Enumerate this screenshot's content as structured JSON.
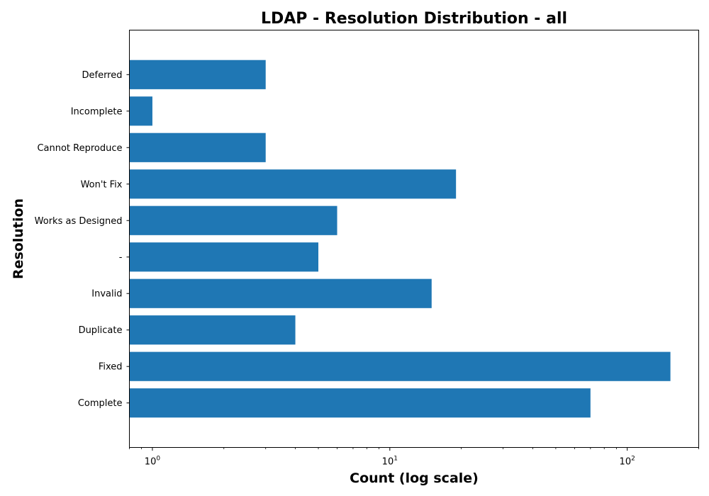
{
  "chart_data": {
    "type": "bar",
    "orientation": "horizontal",
    "title": "LDAP - Resolution Distribution - all",
    "xlabel": "Count (log scale)",
    "ylabel": "Resolution",
    "xscale": "log",
    "xlim": [
      0.8,
      200
    ],
    "x_ticks": [
      {
        "value": 1,
        "base": "10",
        "exp": "0"
      },
      {
        "value": 10,
        "base": "10",
        "exp": "1"
      },
      {
        "value": 100,
        "base": "10",
        "exp": "2"
      }
    ],
    "categories": [
      "Complete",
      "Fixed",
      "Duplicate",
      "Invalid",
      "-",
      "Works as Designed",
      "Won't Fix",
      "Cannot Reproduce",
      "Incomplete",
      "Deferred"
    ],
    "values": [
      70,
      152,
      4,
      15,
      5,
      6,
      19,
      3,
      1,
      3
    ],
    "color": "#1f77b4",
    "grid": false,
    "legend": "none"
  }
}
